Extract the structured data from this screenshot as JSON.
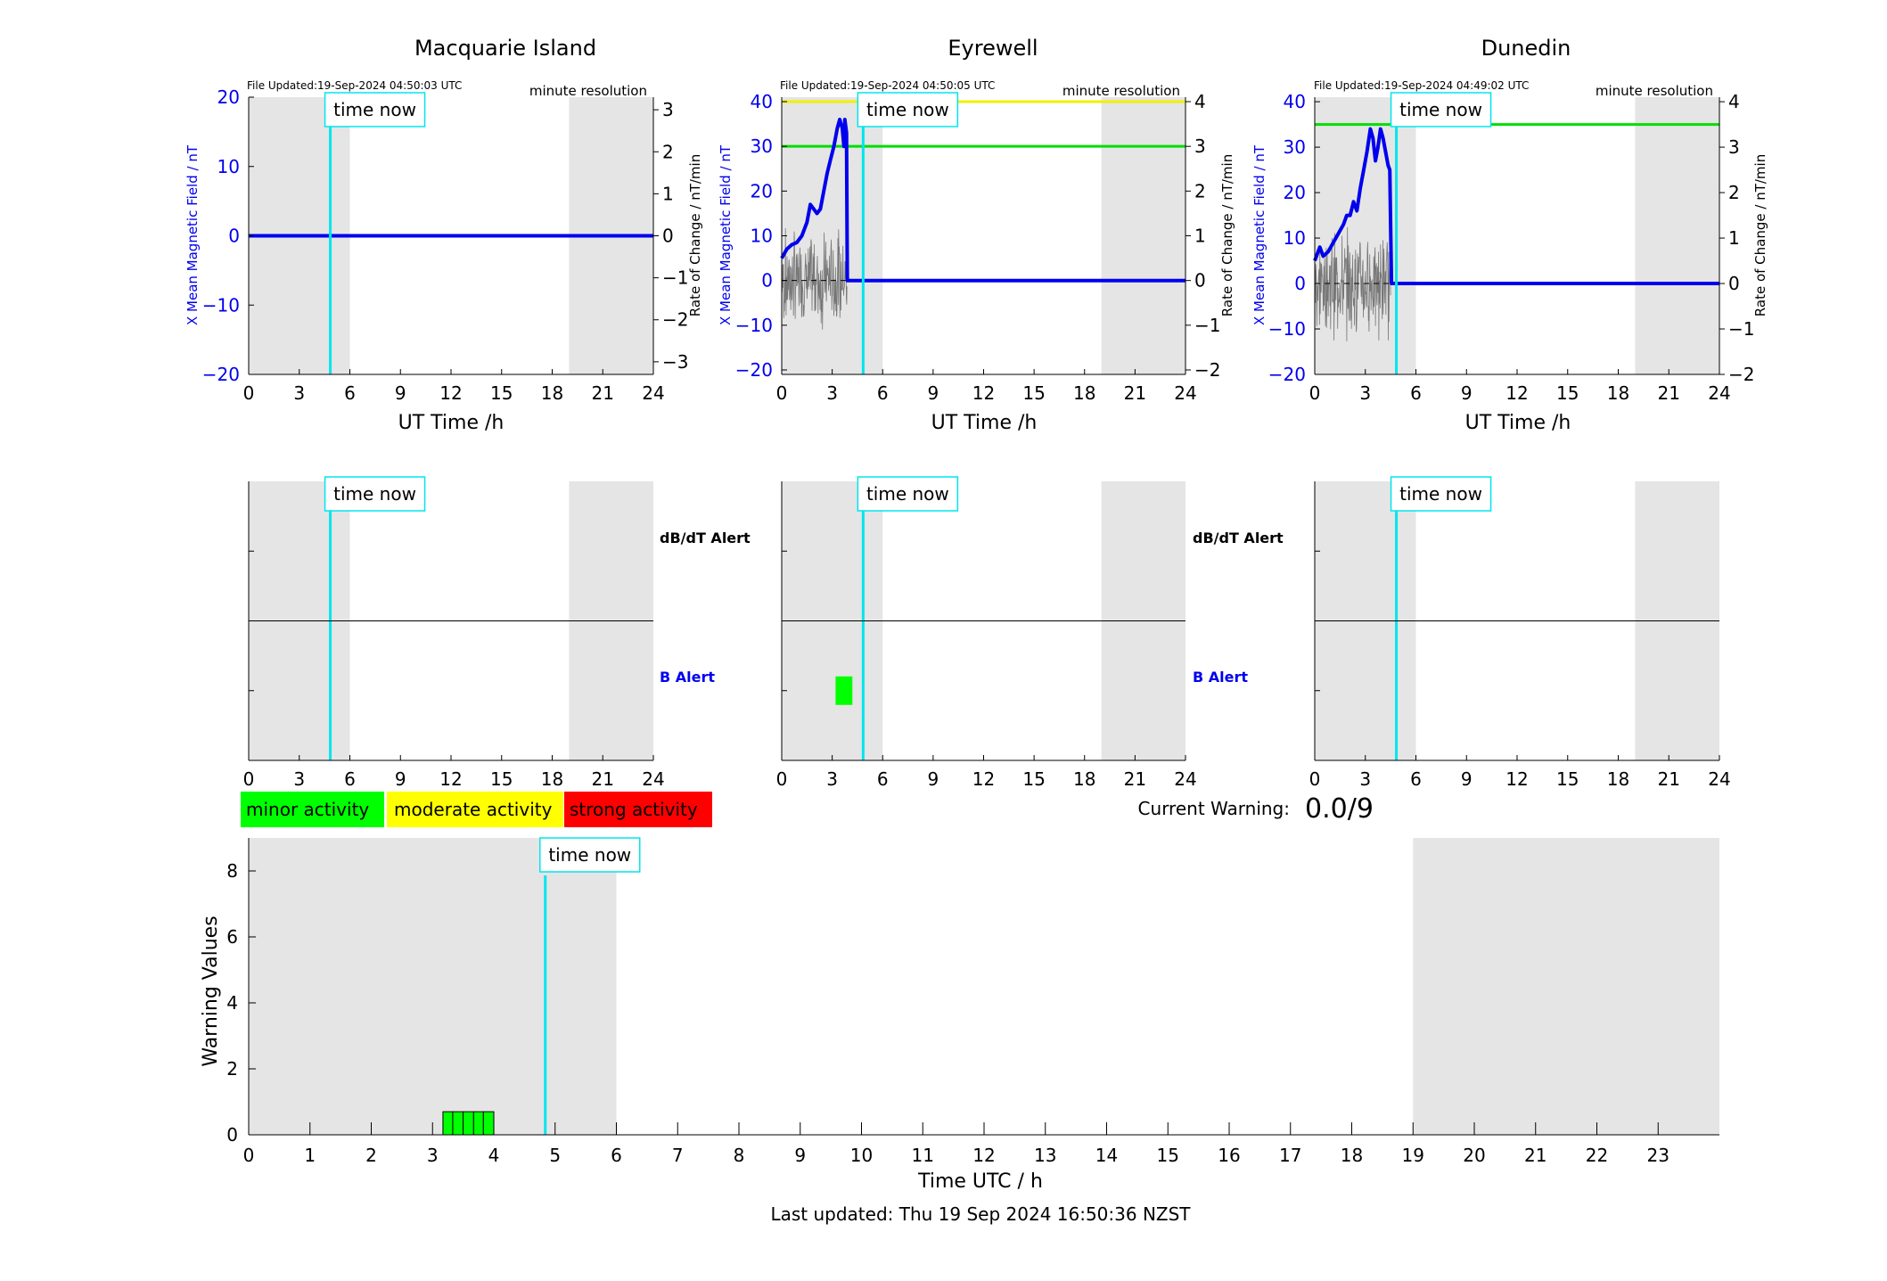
{
  "colors": {
    "b_trace": "#0000ee",
    "rate_trace": "#777777",
    "time_now": "#00e5ee",
    "night": "#e5e5e5",
    "minor": "#00ff00",
    "moderate": "#ffff00",
    "strong": "#ff0000",
    "b_axis_text": "#0000ee",
    "b_alert_text": "#0000ee"
  },
  "time_now_label": "time now",
  "time_now_hour": 4.84,
  "night_bands": [
    [
      0,
      6
    ],
    [
      19,
      24
    ]
  ],
  "chart_data": [
    {
      "type": "line",
      "title": "Macquarie Island",
      "file_updated": "File Updated:19-Sep-2024 04:50:03 UTC",
      "resolution": "minute resolution",
      "xlabel": "UT Time /h",
      "ylabel": "X Mean Magnetic Field / nT",
      "ylabel_right": "Rate of Change / nT/min",
      "xlim": [
        0,
        24
      ],
      "xticks": [
        0,
        3,
        6,
        9,
        12,
        15,
        18,
        21,
        24
      ],
      "ylim": [
        -20,
        20
      ],
      "yticks": [
        -20,
        -10,
        0,
        10,
        20
      ],
      "ylim_right": [
        -3.3,
        3.3
      ],
      "yticks_right": [
        -3,
        -2,
        -1,
        0,
        1,
        2,
        3
      ],
      "thresholds": [],
      "series": [
        {
          "values": [
            [
              0,
              0
            ],
            [
              24,
              0
            ]
          ]
        }
      ],
      "rate_noise": false
    },
    {
      "type": "line",
      "title": "Eyrewell",
      "file_updated": "File Updated:19-Sep-2024 04:50:05 UTC",
      "resolution": "minute resolution",
      "xlabel": "UT Time /h",
      "ylabel": "X Mean Magnetic Field / nT",
      "ylabel_right": "Rate of Change / nT/min",
      "xlim": [
        0,
        24
      ],
      "xticks": [
        0,
        3,
        6,
        9,
        12,
        15,
        18,
        21,
        24
      ],
      "ylim": [
        -21,
        41
      ],
      "yticks": [
        -20,
        -10,
        0,
        10,
        20,
        30,
        40
      ],
      "ylim_right": [
        -2.1,
        4.1
      ],
      "yticks_right": [
        -2,
        -1,
        0,
        1,
        2,
        3,
        4
      ],
      "thresholds": [
        {
          "y": 40,
          "color": "#f0f000"
        },
        {
          "y": 30,
          "color": "#00dd00"
        }
      ],
      "series": [
        {
          "values": [
            [
              0,
              5
            ],
            [
              0.3,
              7
            ],
            [
              0.6,
              8
            ],
            [
              0.9,
              8.5
            ],
            [
              1.2,
              10
            ],
            [
              1.5,
              13
            ],
            [
              1.7,
              17
            ],
            [
              1.9,
              16
            ],
            [
              2.1,
              15
            ],
            [
              2.3,
              16
            ],
            [
              2.5,
              20
            ],
            [
              2.7,
              24
            ],
            [
              2.9,
              27
            ],
            [
              3.1,
              30
            ],
            [
              3.3,
              34
            ],
            [
              3.45,
              36
            ],
            [
              3.6,
              34
            ],
            [
              3.7,
              30
            ],
            [
              3.75,
              36
            ],
            [
              3.85,
              33
            ],
            [
              3.9,
              0
            ],
            [
              4.1,
              0
            ],
            [
              24,
              0
            ]
          ]
        }
      ],
      "rate_noise": true,
      "rate_range": [
        0,
        3.9
      ]
    },
    {
      "type": "line",
      "title": "Dunedin",
      "file_updated": "File Updated:19-Sep-2024 04:49:02 UTC",
      "resolution": "minute resolution",
      "xlabel": "UT Time /h",
      "ylabel": "X Mean Magnetic Field / nT",
      "ylabel_right": "Rate of Change / nT/min",
      "xlim": [
        0,
        24
      ],
      "xticks": [
        0,
        3,
        6,
        9,
        12,
        15,
        18,
        21,
        24
      ],
      "ylim": [
        -20,
        41
      ],
      "yticks": [
        -20,
        -10,
        0,
        10,
        20,
        30,
        40
      ],
      "ylim_right": [
        -2,
        4.1
      ],
      "yticks_right": [
        -2,
        -1,
        0,
        1,
        2,
        3,
        4
      ],
      "thresholds": [
        {
          "y": 35,
          "color": "#00dd00"
        }
      ],
      "series": [
        {
          "values": [
            [
              0,
              5
            ],
            [
              0.3,
              8
            ],
            [
              0.5,
              6
            ],
            [
              0.8,
              7
            ],
            [
              1.1,
              9
            ],
            [
              1.4,
              11
            ],
            [
              1.7,
              13
            ],
            [
              1.9,
              15
            ],
            [
              2.1,
              15
            ],
            [
              2.3,
              18
            ],
            [
              2.5,
              16
            ],
            [
              2.7,
              21
            ],
            [
              2.9,
              25
            ],
            [
              3.1,
              29
            ],
            [
              3.3,
              34
            ],
            [
              3.45,
              32
            ],
            [
              3.6,
              27
            ],
            [
              3.75,
              30
            ],
            [
              3.9,
              34
            ],
            [
              4.05,
              32
            ],
            [
              4.25,
              28
            ],
            [
              4.35,
              26
            ],
            [
              4.45,
              25
            ],
            [
              4.55,
              0
            ],
            [
              4.8,
              0
            ],
            [
              24,
              0
            ]
          ]
        }
      ],
      "rate_noise": true,
      "rate_range": [
        0,
        4.5
      ]
    },
    {
      "type": "bar",
      "panel": "alerts",
      "station": "Macquarie Island",
      "xlim": [
        0,
        24
      ],
      "xticks": [
        0,
        3,
        6,
        9,
        12,
        15,
        18,
        21,
        24
      ],
      "label_top": "dB/dT Alert",
      "label_bottom": "B Alert",
      "db_alerts": [],
      "b_alerts": []
    },
    {
      "type": "bar",
      "panel": "alerts",
      "station": "Eyrewell",
      "xlim": [
        0,
        24
      ],
      "xticks": [
        0,
        3,
        6,
        9,
        12,
        15,
        18,
        21,
        24
      ],
      "label_top": "dB/dT Alert",
      "label_bottom": "B Alert",
      "db_alerts": [],
      "b_alerts": [
        {
          "start": 3.2,
          "end": 4.2,
          "level": "minor"
        }
      ]
    },
    {
      "type": "bar",
      "panel": "alerts",
      "station": "Dunedin",
      "xlim": [
        0,
        24
      ],
      "xticks": [
        0,
        3,
        6,
        9,
        12,
        15,
        18,
        21,
        24
      ],
      "label_top": "",
      "label_bottom": "",
      "db_alerts": [],
      "b_alerts": []
    },
    {
      "type": "bar",
      "panel": "warnings",
      "xlabel": "Time UTC / h",
      "ylabel": "Warning Values",
      "xlim": [
        0,
        24
      ],
      "xticks": [
        0,
        1,
        2,
        3,
        4,
        5,
        6,
        7,
        8,
        9,
        10,
        11,
        12,
        13,
        14,
        15,
        16,
        17,
        18,
        19,
        20,
        21,
        22,
        23
      ],
      "ylim": [
        0,
        9
      ],
      "yticks": [
        0,
        2,
        4,
        6,
        8
      ],
      "bars": [
        {
          "start": 3.17,
          "end": 3.33,
          "value": 0.7
        },
        {
          "start": 3.33,
          "end": 3.5,
          "value": 0.7
        },
        {
          "start": 3.5,
          "end": 3.67,
          "value": 0.7
        },
        {
          "start": 3.67,
          "end": 3.83,
          "value": 0.7
        },
        {
          "start": 3.83,
          "end": 4.0,
          "value": 0.7
        }
      ]
    }
  ],
  "legend": {
    "minor": "minor activity",
    "moderate": "moderate activity",
    "strong": "strong activity"
  },
  "current_warning_label": "Current Warning:",
  "current_warning_value": "0.0/9",
  "footer": "Last updated: Thu 19 Sep 2024 16:50:36 NZST"
}
